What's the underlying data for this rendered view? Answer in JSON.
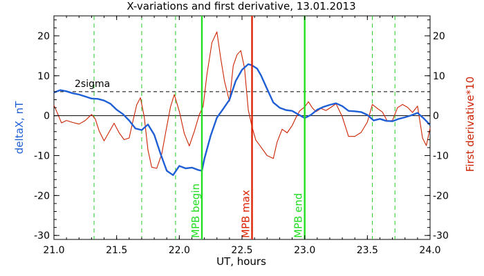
{
  "chart_data": {
    "type": "line",
    "title": "X-variations and first derivative, 13.01.2013",
    "xlabel": "UT, hours",
    "ylabel_left": "deltaX, nT",
    "ylabel_right": "First derivative*10",
    "xlim": [
      21.0,
      24.0
    ],
    "ylim": [
      -31,
      25
    ],
    "x_ticks": [
      "21.0",
      "21.5",
      "22.0",
      "22.5",
      "23.0",
      "23.5",
      "24.0"
    ],
    "y_ticks_left": [
      "20",
      "10",
      "0",
      "-10",
      "-20",
      "-30"
    ],
    "y_ticks_right": [
      "20",
      "10",
      "0",
      "-10",
      "-20",
      "-30"
    ],
    "colors": {
      "deltaX": "#1f5fd6",
      "derivative": "#cc2200",
      "right_axis_label": "#cc2200",
      "left_axis_label": "#1f5fd6",
      "mpb_edge": "#22dd22",
      "mpb_max": "#dd2200",
      "dashed_green": "#22cc22"
    },
    "sigma_line": {
      "label": "2sigma",
      "y": 6.0
    },
    "zero_line": {
      "y": 0
    },
    "vertical_lines": [
      {
        "x": 22.18,
        "label": "MPB begin",
        "kind": "mpb_edge"
      },
      {
        "x": 22.58,
        "label": "MPB max",
        "kind": "mpb_max"
      },
      {
        "x": 23.0,
        "label": "MPB end",
        "kind": "mpb_edge"
      }
    ],
    "dashed_vertical_lines": [
      21.32,
      21.7,
      21.97,
      23.54,
      23.72
    ],
    "series": [
      {
        "name": "deltaX",
        "axis": "left",
        "x": [
          21.0,
          21.05,
          21.1,
          21.15,
          21.2,
          21.25,
          21.3,
          21.35,
          21.4,
          21.45,
          21.5,
          21.55,
          21.6,
          21.65,
          21.7,
          21.75,
          21.8,
          21.85,
          21.9,
          21.95,
          22.0,
          22.05,
          22.1,
          22.15,
          22.18,
          22.2,
          22.25,
          22.3,
          22.35,
          22.4,
          22.45,
          22.5,
          22.55,
          22.58,
          22.62,
          22.65,
          22.7,
          22.75,
          22.8,
          22.85,
          22.9,
          22.95,
          23.0,
          23.05,
          23.1,
          23.15,
          23.2,
          23.25,
          23.3,
          23.35,
          23.4,
          23.45,
          23.5,
          23.55,
          23.6,
          23.65,
          23.7,
          23.75,
          23.8,
          23.85,
          23.9,
          23.95,
          24.0
        ],
        "y": [
          5.8,
          6.4,
          6.1,
          5.6,
          5.3,
          4.8,
          4.3,
          4.2,
          3.8,
          3.0,
          1.5,
          0.4,
          -1.2,
          -3.2,
          -3.6,
          -2.2,
          -4.8,
          -9.5,
          -13.8,
          -14.9,
          -12.6,
          -13.2,
          -13.0,
          -13.6,
          -13.8,
          -10.8,
          -5.0,
          -0.5,
          1.7,
          4.0,
          8.7,
          11.5,
          12.9,
          12.6,
          11.8,
          10.2,
          6.7,
          3.3,
          2.0,
          1.4,
          1.2,
          0.3,
          -0.6,
          0.2,
          1.5,
          2.2,
          2.7,
          3.1,
          2.4,
          1.2,
          1.1,
          0.9,
          0.2,
          -1.2,
          -0.8,
          -1.3,
          -1.4,
          -0.8,
          -0.4,
          0.1,
          0.7,
          -0.7,
          -2.3
        ]
      },
      {
        "name": "First derivative*10",
        "axis": "right",
        "x": [
          21.0,
          21.03,
          21.06,
          21.1,
          21.15,
          21.2,
          21.25,
          21.3,
          21.33,
          21.36,
          21.4,
          21.44,
          21.48,
          21.52,
          21.56,
          21.6,
          21.63,
          21.66,
          21.69,
          21.72,
          21.75,
          21.78,
          21.82,
          21.86,
          21.9,
          21.93,
          21.96,
          22.0,
          22.04,
          22.08,
          22.12,
          22.16,
          22.19,
          22.22,
          22.26,
          22.3,
          22.33,
          22.36,
          22.4,
          22.43,
          22.46,
          22.49,
          22.52,
          22.55,
          22.58,
          22.61,
          22.65,
          22.7,
          22.75,
          22.78,
          22.82,
          22.86,
          22.9,
          22.93,
          22.96,
          23.0,
          23.03,
          23.06,
          23.09,
          23.13,
          23.17,
          23.21,
          23.25,
          23.3,
          23.35,
          23.4,
          23.45,
          23.5,
          23.54,
          23.58,
          23.62,
          23.66,
          23.7,
          23.74,
          23.78,
          23.82,
          23.86,
          23.9,
          23.94,
          23.97,
          24.0
        ],
        "y": [
          2.6,
          0.5,
          -1.8,
          -1.2,
          -1.7,
          -2.1,
          -1.2,
          0.3,
          -0.8,
          -3.8,
          -6.3,
          -4.1,
          -1.9,
          -4.3,
          -6.0,
          -5.6,
          -1.4,
          2.7,
          4.5,
          -0.3,
          -8.6,
          -12.9,
          -13.2,
          -9.6,
          -2.7,
          2.2,
          5.3,
          1.1,
          -4.5,
          -7.6,
          -3.9,
          0.3,
          2.3,
          10.2,
          18.3,
          21.0,
          14.4,
          8.7,
          3.6,
          12.5,
          15.2,
          16.3,
          12.0,
          1.4,
          -2.8,
          -6.1,
          -7.8,
          -10.0,
          -10.7,
          -6.6,
          -3.4,
          -4.3,
          -2.5,
          -0.5,
          1.2,
          2.2,
          3.5,
          2.0,
          1.0,
          1.8,
          1.3,
          2.1,
          3.0,
          -0.3,
          -5.2,
          -5.2,
          -4.2,
          -1.6,
          2.8,
          1.8,
          0.9,
          -1.4,
          -1.2,
          2.0,
          2.8,
          2.1,
          0.8,
          2.4,
          -5.6,
          -7.5,
          -3.1
        ]
      }
    ]
  }
}
